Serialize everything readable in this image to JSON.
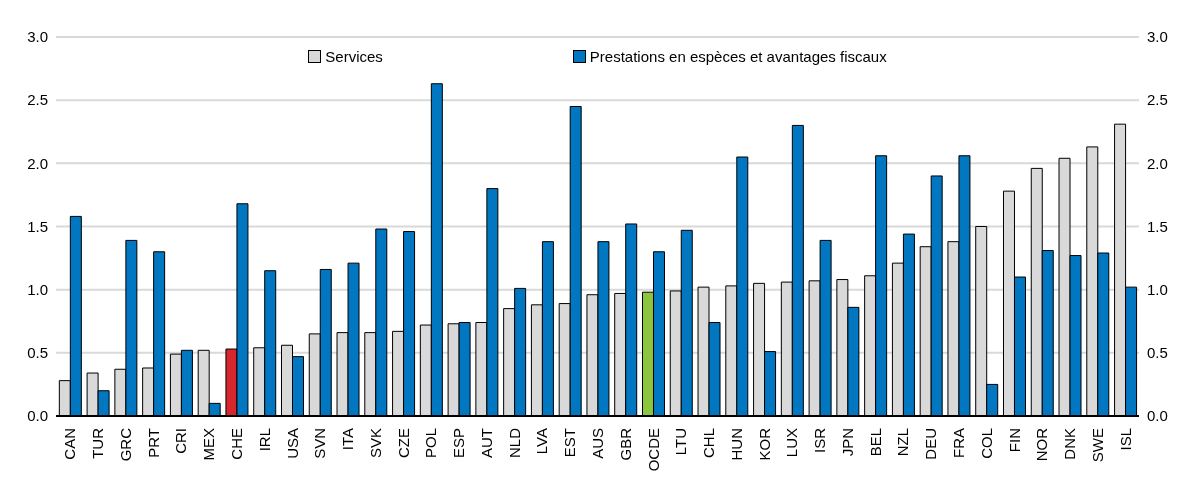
{
  "chart_data": {
    "type": "bar",
    "categories": [
      "CAN",
      "TUR",
      "GRC",
      "PRT",
      "CRI",
      "MEX",
      "CHE",
      "IRL",
      "USA",
      "SVN",
      "ITA",
      "SVK",
      "CZE",
      "POL",
      "ESP",
      "AUT",
      "NLD",
      "LVA",
      "EST",
      "AUS",
      "GBR",
      "OCDE",
      "LTU",
      "CHL",
      "HUN",
      "KOR",
      "LUX",
      "ISR",
      "JPN",
      "BEL",
      "NZL",
      "DEU",
      "FRA",
      "COL",
      "FIN",
      "NOR",
      "DNK",
      "SWE",
      "ISL"
    ],
    "series": [
      {
        "name": "Services",
        "color": "#d9d9d9",
        "colors": [
          "#d9d9d9",
          "#d9d9d9",
          "#d9d9d9",
          "#d9d9d9",
          "#d9d9d9",
          "#d9d9d9",
          "#d7272d",
          "#d9d9d9",
          "#d9d9d9",
          "#d9d9d9",
          "#d9d9d9",
          "#d9d9d9",
          "#d9d9d9",
          "#d9d9d9",
          "#d9d9d9",
          "#d9d9d9",
          "#d9d9d9",
          "#d9d9d9",
          "#d9d9d9",
          "#d9d9d9",
          "#d9d9d9",
          "#8cc63f",
          "#d9d9d9",
          "#d9d9d9",
          "#d9d9d9",
          "#d9d9d9",
          "#d9d9d9",
          "#d9d9d9",
          "#d9d9d9",
          "#d9d9d9",
          "#d9d9d9",
          "#d9d9d9",
          "#d9d9d9",
          "#d9d9d9",
          "#d9d9d9",
          "#d9d9d9",
          "#d9d9d9",
          "#d9d9d9",
          "#d9d9d9"
        ],
        "values": [
          0.28,
          0.34,
          0.37,
          0.38,
          0.49,
          0.52,
          0.53,
          0.54,
          0.56,
          0.65,
          0.66,
          0.66,
          0.67,
          0.72,
          0.73,
          0.74,
          0.85,
          0.88,
          0.89,
          0.96,
          0.97,
          0.98,
          0.99,
          1.02,
          1.03,
          1.05,
          1.06,
          1.07,
          1.08,
          1.11,
          1.21,
          1.34,
          1.38,
          1.5,
          1.78,
          1.96,
          2.04,
          2.13,
          2.31
        ]
      },
      {
        "name": "Prestations en espèces et avantages fiscaux",
        "color": "#0077c0",
        "values": [
          1.58,
          0.2,
          1.39,
          1.3,
          0.52,
          0.1,
          1.68,
          1.15,
          0.47,
          1.16,
          1.21,
          1.48,
          1.46,
          2.63,
          0.74,
          1.8,
          1.01,
          1.38,
          2.45,
          1.38,
          1.52,
          1.3,
          1.47,
          0.74,
          2.05,
          0.51,
          2.3,
          1.39,
          0.86,
          2.06,
          1.44,
          1.9,
          2.06,
          0.25,
          1.1,
          1.31,
          1.27,
          1.29,
          1.02
        ]
      }
    ],
    "ylim": [
      0,
      3
    ],
    "yticks": [
      {
        "value": 0,
        "label": "0.0"
      },
      {
        "value": 0.5,
        "label": "0.5"
      },
      {
        "value": 1,
        "label": "1.0"
      },
      {
        "value": 1.5,
        "label": "1.5"
      },
      {
        "value": 2,
        "label": "2.0"
      },
      {
        "value": 2.5,
        "label": "2.5"
      },
      {
        "value": 3,
        "label": "3.0"
      }
    ],
    "y2lim": [
      0,
      3
    ],
    "y2ticks": [
      {
        "value": 0,
        "label": "0.0"
      },
      {
        "value": 0.5,
        "label": "0.5"
      },
      {
        "value": 1,
        "label": "1.0"
      },
      {
        "value": 1.5,
        "label": "1.5"
      },
      {
        "value": 2,
        "label": "2.0"
      },
      {
        "value": 2.5,
        "label": "2.5"
      },
      {
        "value": 3,
        "label": "3.0"
      }
    ],
    "grid": "y",
    "legend": "top"
  }
}
